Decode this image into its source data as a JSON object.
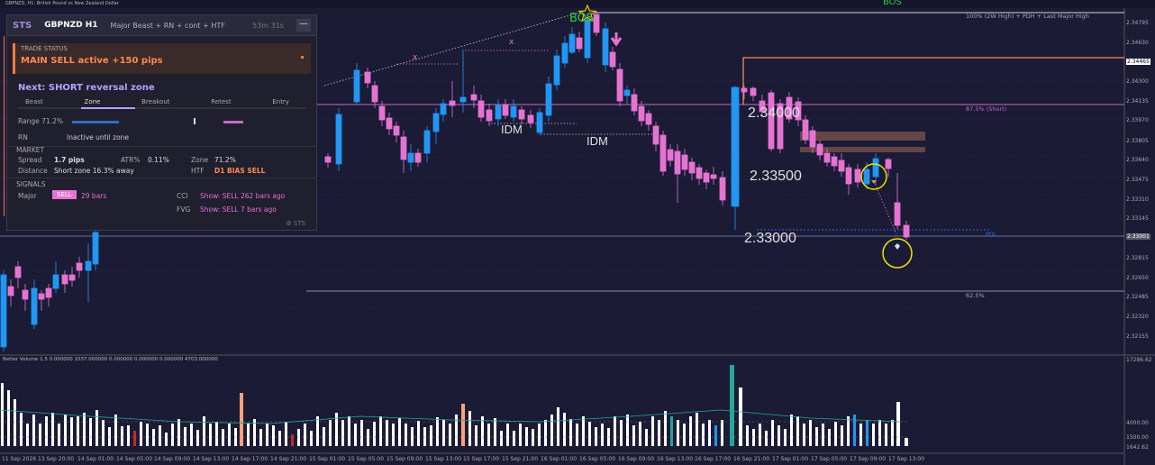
{
  "window": {
    "title": "GBPNZD, H1: British Pound vs New Zealand Dollar"
  },
  "top_label": "BOS",
  "panel": {
    "brand": "STS",
    "symbol": "GBPNZD H1",
    "mode": "Major Beast + RN + cont + HTF",
    "timer": "53m 31s",
    "minimize": "—",
    "trade_status_title": "TRADE STATUS",
    "trade_status_value": "MAIN SELL active +150 pips",
    "next": "Next: SHORT reversal zone",
    "steps": [
      "Beast",
      "Zone",
      "Breakout",
      "Retest",
      "Entry"
    ],
    "range_label": "Range 71.2%",
    "rn_label": "RN",
    "rn_value": "Inactive until zone",
    "market_title": "MARKET",
    "spread_label": "Spread",
    "spread_value": "1.7 pips",
    "atr_label": "ATR%",
    "atr_value": "0.11%",
    "zone_label": "Zone",
    "zone_value": "71.2%",
    "distance_label": "Distance",
    "distance_value": "Short zone 16.3% away",
    "htf_label": "HTF",
    "htf_value": "D1 BIAS SELL",
    "signals_title": "SIGNALS",
    "major_label": "Major",
    "major_badge": "SELL",
    "major_value": "29 bars",
    "cci_label": "CCI",
    "cci_value": "Show: SELL 262 bars ago",
    "fvg_label": "FVG",
    "fvg_value": "Show: SELL 7 bars ago",
    "footer": "⚙ STS"
  },
  "annotations": {
    "price_2_34000": "2.34000",
    "price_2_33500": "2.33500",
    "price_2_33000": "2.33000",
    "idm_1": "IDM",
    "idm_2": "IDM",
    "bos": "BOS",
    "x_mark": "x",
    "level_100": "100% (2W High) + PDH + Last Major High",
    "level_875": "87.5% (Short)",
    "level_625": "62.5%",
    "pdl": "PDL"
  },
  "y_axis": [
    "2.34795",
    "2.34630",
    "2.34465",
    "2.34300",
    "2.34135",
    "2.33970",
    "2.33805",
    "2.33640",
    "2.33475",
    "2.33310",
    "2.33145",
    "2.33001",
    "2.32815",
    "2.32650",
    "2.32485",
    "2.32320",
    "2.32155"
  ],
  "volume": {
    "title": "Better Volume 1.5 0.000000 1037.000000 0.000000 0.000000 0.000000 4703.000000",
    "scale": [
      "17286.62",
      "4000.00",
      "1500.00",
      "1642.62"
    ]
  },
  "x_axis": [
    "11 Sep 2026",
    "13 Sep 20:00",
    "14 Sep 01:00",
    "14 Sep 05:00",
    "14 Sep 09:00",
    "14 Sep 13:00",
    "14 Sep 17:00",
    "14 Sep 21:00",
    "15 Sep 01:00",
    "15 Sep 05:00",
    "15 Sep 09:00",
    "15 Sep 13:00",
    "15 Sep 17:00",
    "15 Sep 21:00",
    "16 Sep 01:00",
    "16 Sep 05:00",
    "16 Sep 09:00",
    "16 Sep 13:00",
    "16 Sep 17:00",
    "16 Sep 21:00",
    "17 Sep 01:00",
    "17 Sep 05:00",
    "17 Sep 09:00",
    "17 Sep 13:00"
  ],
  "colors": {
    "bull": "#2196f3",
    "bear": "#e573d2",
    "bg": "#1b1b36",
    "accent": "#ff8a50"
  }
}
